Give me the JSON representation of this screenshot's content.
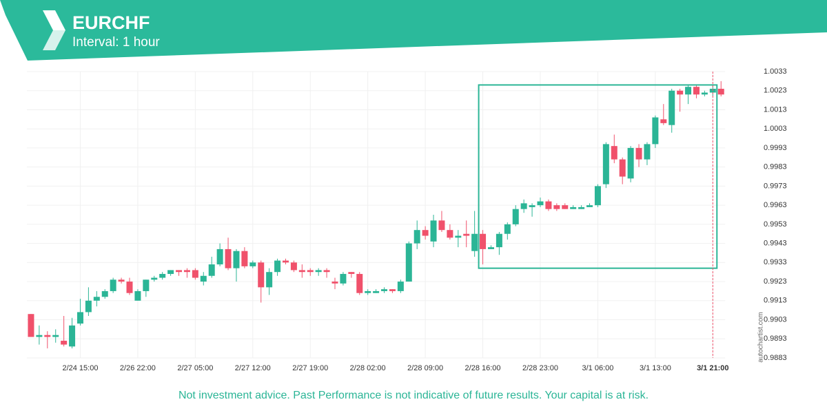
{
  "header": {
    "title": "EURCHF",
    "subtitle": "Interval: 1 hour"
  },
  "chart_data": {
    "type": "candlestick",
    "categories": [
      null,
      null,
      null,
      null,
      null,
      null,
      "2/24 15:00",
      null,
      null,
      null,
      null,
      null,
      null,
      "2/26 22:00",
      null,
      null,
      null,
      null,
      null,
      null,
      "2/27 05:00",
      null,
      null,
      null,
      null,
      null,
      null,
      "2/27 12:00",
      null,
      null,
      null,
      null,
      null,
      null,
      "2/27 19:00",
      null,
      null,
      null,
      null,
      null,
      null,
      "2/28 02:00",
      null,
      null,
      null,
      null,
      null,
      null,
      "2/28 09:00",
      null,
      null,
      null,
      null,
      null,
      null,
      "2/28 16:00",
      null,
      null,
      null,
      null,
      null,
      null,
      "2/28 23:00",
      null,
      null,
      null,
      null,
      null,
      null,
      "3/1 06:00",
      null,
      null,
      null,
      null,
      null,
      null,
      "3/1 13:00",
      null,
      null,
      null,
      null,
      null,
      null,
      "3/1 21:00",
      null
    ],
    "open": [
      0.9906,
      0.9894,
      0.9895,
      0.9894,
      0.9892,
      0.9889,
      0.9901,
      0.9907,
      0.9913,
      0.9915,
      0.9918,
      0.9924,
      0.9923,
      0.9913,
      0.9918,
      0.9924,
      0.9925,
      0.9927,
      0.9929,
      0.9929,
      0.9929,
      0.9923,
      0.9926,
      0.9932,
      0.994,
      0.993,
      0.9939,
      0.9931,
      0.9933,
      0.992,
      0.9928,
      0.9934,
      0.9933,
      0.9929,
      0.9929,
      0.9928,
      0.9929,
      0.9923,
      0.9922,
      0.9928,
      0.9927,
      0.9917,
      0.9917,
      0.9918,
      0.9919,
      0.9918,
      0.9923,
      0.9943,
      0.995,
      0.9944,
      0.9955,
      0.995,
      0.9946,
      0.9948,
      0.9939,
      0.9948,
      0.994,
      0.9941,
      0.9948,
      0.9953,
      0.9961,
      0.9962,
      0.9963,
      0.9965,
      0.9963,
      0.9963,
      0.9961,
      0.9961,
      0.9962,
      0.9963,
      0.9974,
      0.9994,
      0.9987,
      0.9977,
      0.9993,
      0.9987,
      0.9995,
      1.0008,
      1.0005,
      1.0023,
      1.0021,
      1.0025,
      1.0021,
      1.0022,
      1.0024
    ],
    "high": [
      0.9906,
      0.99,
      0.9897,
      0.9898,
      0.9905,
      0.9904,
      0.9914,
      0.992,
      0.9918,
      0.9919,
      0.9925,
      0.9925,
      0.9925,
      0.9919,
      0.9924,
      0.9926,
      0.9928,
      0.9929,
      0.9929,
      0.993,
      0.993,
      0.9928,
      0.9936,
      0.9943,
      0.9946,
      0.994,
      0.9941,
      0.9934,
      0.9934,
      0.993,
      0.9935,
      0.9935,
      0.9934,
      0.9932,
      0.993,
      0.993,
      0.993,
      0.9925,
      0.9928,
      0.9928,
      0.9928,
      0.9919,
      0.9919,
      0.992,
      0.9919,
      0.9924,
      0.9944,
      0.9955,
      0.9952,
      0.9958,
      0.996,
      0.9953,
      0.995,
      0.9955,
      0.996,
      0.995,
      0.9942,
      0.9949,
      0.9954,
      0.9963,
      0.9966,
      0.9964,
      0.9967,
      0.9966,
      0.9964,
      0.9964,
      0.9963,
      0.9963,
      0.9964,
      0.9974,
      0.9996,
      1.0,
      0.9988,
      0.9994,
      0.9995,
      0.9996,
      1.001,
      1.0016,
      1.0024,
      1.0024,
      1.0026,
      1.0026,
      1.0023,
      1.0026,
      1.0028
    ],
    "low": [
      0.9894,
      0.989,
      0.9888,
      0.9891,
      0.9889,
      0.9888,
      0.99,
      0.9905,
      0.991,
      0.9914,
      0.9917,
      0.9922,
      0.9916,
      0.9913,
      0.9915,
      0.9923,
      0.9924,
      0.9926,
      0.9926,
      0.9925,
      0.9924,
      0.9921,
      0.9925,
      0.9931,
      0.9929,
      0.9923,
      0.993,
      0.993,
      0.9912,
      0.9916,
      0.9926,
      0.9932,
      0.9928,
      0.9925,
      0.9926,
      0.9926,
      0.9925,
      0.9919,
      0.9921,
      0.9925,
      0.9916,
      0.9916,
      0.9917,
      0.9917,
      0.9917,
      0.9917,
      0.9923,
      0.994,
      0.9945,
      0.9941,
      0.9949,
      0.9945,
      0.9941,
      0.9941,
      0.9936,
      0.9932,
      0.994,
      0.9937,
      0.9945,
      0.9952,
      0.9959,
      0.9957,
      0.9962,
      0.996,
      0.996,
      0.9961,
      0.9961,
      0.9961,
      0.9962,
      0.9962,
      0.9972,
      0.9985,
      0.9974,
      0.9975,
      0.9983,
      0.9984,
      0.9993,
      1.0005,
      1.0001,
      1.0012,
      1.0016,
      1.0019,
      1.002,
      1.002,
      1.002
    ],
    "close": [
      0.9894,
      0.9895,
      0.9894,
      0.9895,
      0.989,
      0.99,
      0.9907,
      0.9913,
      0.9915,
      0.9918,
      0.9924,
      0.9923,
      0.9917,
      0.9918,
      0.9924,
      0.9925,
      0.9927,
      0.9929,
      0.9928,
      0.9928,
      0.9925,
      0.9926,
      0.9932,
      0.994,
      0.993,
      0.9939,
      0.9931,
      0.9933,
      0.992,
      0.9928,
      0.9934,
      0.9933,
      0.9929,
      0.9928,
      0.9928,
      0.9929,
      0.9928,
      0.9922,
      0.9927,
      0.9927,
      0.9917,
      0.9918,
      0.9918,
      0.9919,
      0.9918,
      0.9923,
      0.9943,
      0.995,
      0.9947,
      0.9955,
      0.995,
      0.9946,
      0.9947,
      0.9947,
      0.9948,
      0.994,
      0.9941,
      0.9948,
      0.9953,
      0.9961,
      0.9964,
      0.9963,
      0.9965,
      0.9961,
      0.9961,
      0.9961,
      0.9962,
      0.9962,
      0.9963,
      0.9973,
      0.9995,
      0.9987,
      0.9978,
      0.9993,
      0.9987,
      0.9995,
      1.0009,
      1.0006,
      1.0023,
      1.0021,
      1.0025,
      1.0021,
      1.0022,
      1.0024,
      1.0021
    ],
    "up_color": "#2bb596",
    "down_color": "#f0516b",
    "ylim": [
      0.9883,
      1.0033
    ],
    "yticks": [
      0.9883,
      0.9893,
      0.9903,
      0.9913,
      0.9923,
      0.9933,
      0.9943,
      0.9953,
      0.9963,
      0.9973,
      0.9983,
      0.9993,
      1.0003,
      1.0013,
      1.0023,
      1.0033
    ],
    "grid": true,
    "pattern": {
      "start": 55,
      "end": 83,
      "low": 0.993,
      "high": 1.0026,
      "color": "#2bb596"
    },
    "current": 83
  },
  "footer": {
    "disclaimer": "Not investment advice. Past Performance is not indicative of future results. Your capital is at risk.",
    "watermark": "autochartist.com"
  }
}
